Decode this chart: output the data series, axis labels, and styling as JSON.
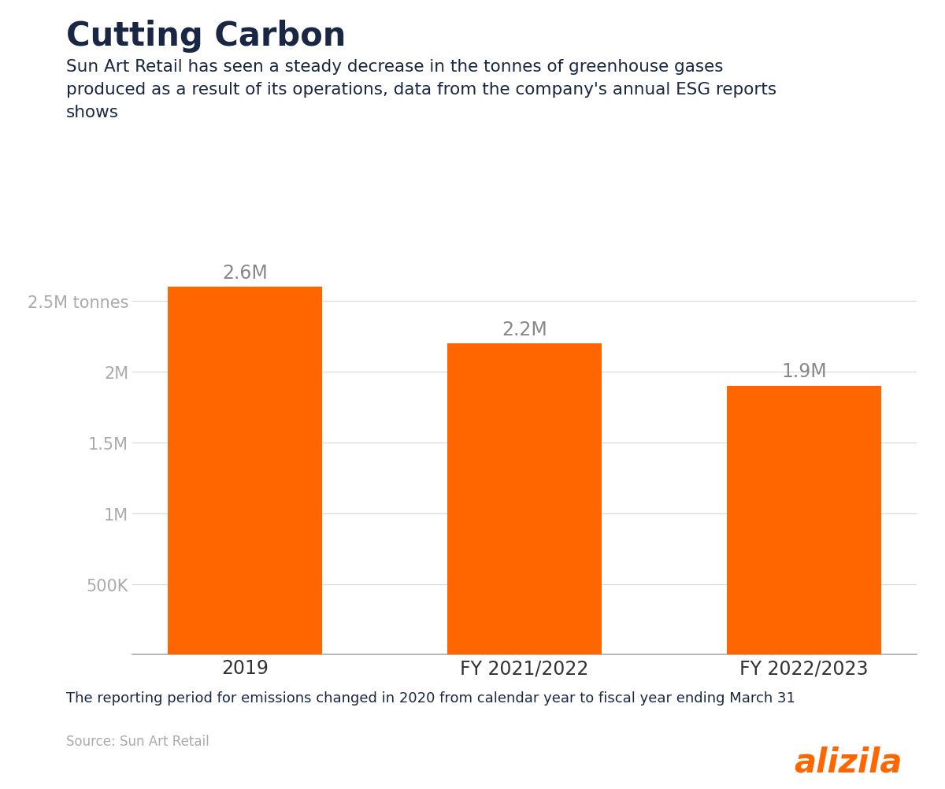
{
  "title": "Cutting Carbon",
  "subtitle": "Sun Art Retail has seen a steady decrease in the tonnes of greenhouse gases\nproduced as a result of its operations, data from the company's annual ESG reports\nshows",
  "categories": [
    "2019",
    "FY 2021/2022",
    "FY 2022/2023"
  ],
  "values": [
    2600000,
    2200000,
    1900000
  ],
  "bar_labels": [
    "2.6M",
    "2.2M",
    "1.9M"
  ],
  "bar_color": "#FF6600",
  "title_color": "#1a2744",
  "subtitle_color": "#1a2744",
  "ytick_labels": [
    "500K",
    "1M",
    "1.5M",
    "2M",
    "2.5M tonnes"
  ],
  "ytick_values": [
    500000,
    1000000,
    1500000,
    2000000,
    2500000
  ],
  "ytick_color": "#aaaaaa",
  "bar_label_color": "#888888",
  "xtick_color": "#333333",
  "grid_color": "#dddddd",
  "footnote": "The reporting period for emissions changed in 2020 from calendar year to fiscal year ending March 31",
  "footnote_color": "#1a2744",
  "source": "Source: Sun Art Retail",
  "source_color": "#aaaaaa",
  "brand": "alizila",
  "brand_color": "#FF6600",
  "ylim": [
    0,
    2900000
  ],
  "background_color": "#ffffff"
}
